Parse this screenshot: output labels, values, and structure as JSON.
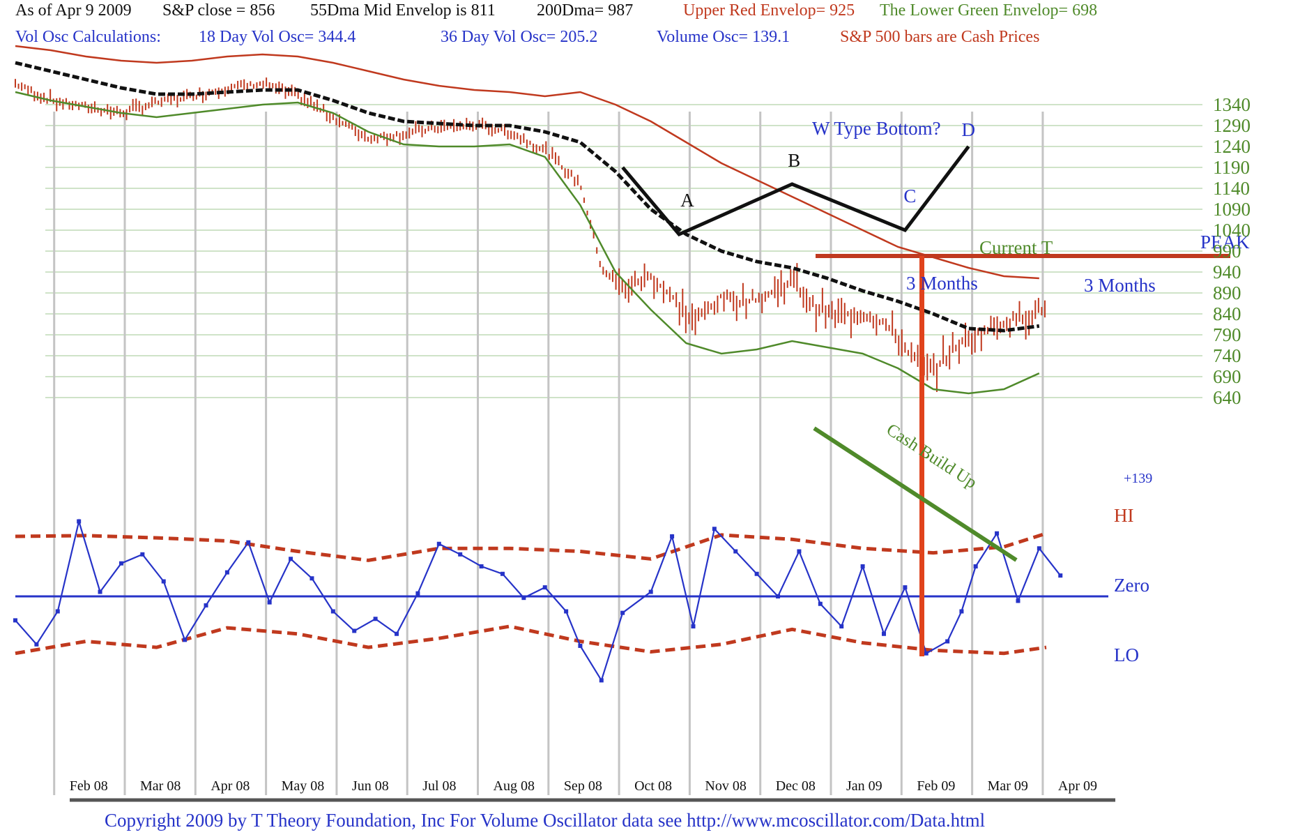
{
  "header": {
    "line1": [
      {
        "text": "As of Apr 9  2009",
        "color": "black"
      },
      {
        "text": "S&P close = 856",
        "color": "black"
      },
      {
        "text": "55Dma Mid Envelop is  811",
        "color": "black"
      },
      {
        "text": "200Dma=  987",
        "color": "black"
      },
      {
        "text": "Upper Red Envelop= 925",
        "color": "red"
      },
      {
        "text": "The Lower Green Envelop=  698",
        "color": "green"
      }
    ],
    "line2": [
      {
        "text": "Vol Osc Calculations:",
        "color": "blue"
      },
      {
        "text": "18 Day Vol Osc=  344.4",
        "color": "blue"
      },
      {
        "text": "36 Day Vol Osc=  205.2",
        "color": "blue"
      },
      {
        "text": "Volume Osc=  139.1",
        "color": "blue"
      },
      {
        "text": "S&P 500 bars are Cash Prices",
        "color": "red"
      }
    ]
  },
  "footer": {
    "copyright": "Copyright 2009 by T Theory Foundation, Inc  For Volume Oscillator data see http://www.mcoscillator.com/Data.html"
  },
  "colors": {
    "price_bars": "#c0391e",
    "upper_envelope": "#c0391e",
    "lower_envelope": "#4f8a2a",
    "mid_envelope": "#111111",
    "oscillator": "#2633c8",
    "hi_lo_bands": "#c0391e",
    "grid": "#cfe3c8",
    "vertical_grid": "#c4c4c4"
  },
  "chart_data": {
    "type": "line",
    "price_axis": {
      "ticks": [
        1340,
        1290,
        1240,
        1190,
        1140,
        1090,
        1040,
        990,
        940,
        890,
        840,
        790,
        740,
        690,
        640
      ],
      "ylim": [
        620,
        1360
      ]
    },
    "months": [
      "Feb 08",
      "Mar 08",
      "Apr 08",
      "May 08",
      "Jun 08",
      "Jul 08",
      "Aug 08",
      "Sep 08",
      "Oct 08",
      "Nov 08",
      "Dec 08",
      "Jan 09",
      "Feb 09",
      "Mar 09",
      "Apr 09"
    ],
    "x_range": [
      "Jan 08",
      "Apr 09"
    ],
    "series": [
      {
        "name": "S&P 500 bars are Cash Prices",
        "kind": "price-line",
        "values": [
          [
            0,
            1390
          ],
          [
            0.5,
            1350
          ],
          [
            1,
            1335
          ],
          [
            1.5,
            1320
          ],
          [
            2,
            1345
          ],
          [
            2.5,
            1360
          ],
          [
            3,
            1380
          ],
          [
            3.5,
            1390
          ],
          [
            4,
            1360
          ],
          [
            4.5,
            1310
          ],
          [
            5,
            1260
          ],
          [
            5.5,
            1270
          ],
          [
            6,
            1285
          ],
          [
            6.5,
            1290
          ],
          [
            7,
            1275
          ],
          [
            7.5,
            1230
          ],
          [
            8,
            1150
          ],
          [
            8.3,
            950
          ],
          [
            8.6,
            900
          ],
          [
            9,
            930
          ],
          [
            9.3,
            880
          ],
          [
            9.6,
            820
          ],
          [
            10,
            880
          ],
          [
            10.3,
            870
          ],
          [
            10.6,
            880
          ],
          [
            11,
            920
          ],
          [
            11.3,
            860
          ],
          [
            11.6,
            835
          ],
          [
            12,
            840
          ],
          [
            12.3,
            820
          ],
          [
            12.6,
            760
          ],
          [
            12.9,
            700
          ],
          [
            13.1,
            720
          ],
          [
            13.3,
            760
          ],
          [
            13.6,
            790
          ],
          [
            14,
            820
          ],
          [
            14.3,
            835
          ],
          [
            14.6,
            856
          ]
        ]
      },
      {
        "name": "Upper Red Envelop",
        "kind": "line",
        "values": [
          [
            0,
            1480
          ],
          [
            0.5,
            1470
          ],
          [
            1,
            1455
          ],
          [
            1.5,
            1445
          ],
          [
            2,
            1440
          ],
          [
            2.5,
            1445
          ],
          [
            3,
            1455
          ],
          [
            3.5,
            1460
          ],
          [
            4,
            1455
          ],
          [
            4.5,
            1440
          ],
          [
            5,
            1420
          ],
          [
            5.5,
            1400
          ],
          [
            6,
            1385
          ],
          [
            6.5,
            1375
          ],
          [
            7,
            1370
          ],
          [
            7.5,
            1360
          ],
          [
            8,
            1370
          ],
          [
            8.5,
            1340
          ],
          [
            9,
            1300
          ],
          [
            9.5,
            1250
          ],
          [
            10,
            1200
          ],
          [
            10.5,
            1160
          ],
          [
            11,
            1120
          ],
          [
            11.5,
            1080
          ],
          [
            12,
            1040
          ],
          [
            12.5,
            1000
          ],
          [
            13,
            975
          ],
          [
            13.5,
            950
          ],
          [
            14,
            930
          ],
          [
            14.5,
            925
          ]
        ]
      },
      {
        "name": "55Dma Mid Envelop",
        "kind": "line",
        "values": [
          [
            0,
            1440
          ],
          [
            0.5,
            1420
          ],
          [
            1,
            1400
          ],
          [
            1.5,
            1380
          ],
          [
            2,
            1365
          ],
          [
            2.5,
            1365
          ],
          [
            3,
            1370
          ],
          [
            3.5,
            1375
          ],
          [
            4,
            1375
          ],
          [
            4.5,
            1350
          ],
          [
            5,
            1320
          ],
          [
            5.5,
            1300
          ],
          [
            6,
            1295
          ],
          [
            6.5,
            1290
          ],
          [
            7,
            1290
          ],
          [
            7.5,
            1275
          ],
          [
            8,
            1250
          ],
          [
            8.5,
            1180
          ],
          [
            9,
            1090
          ],
          [
            9.5,
            1030
          ],
          [
            10,
            990
          ],
          [
            10.5,
            965
          ],
          [
            11,
            950
          ],
          [
            11.5,
            925
          ],
          [
            12,
            895
          ],
          [
            12.5,
            870
          ],
          [
            13,
            840
          ],
          [
            13.5,
            805
          ],
          [
            14,
            800
          ],
          [
            14.5,
            811
          ]
        ]
      },
      {
        "name": "The Lower Green Envelop",
        "kind": "line",
        "values": [
          [
            0,
            1370
          ],
          [
            0.5,
            1350
          ],
          [
            1,
            1335
          ],
          [
            1.5,
            1320
          ],
          [
            2,
            1310
          ],
          [
            2.5,
            1320
          ],
          [
            3,
            1330
          ],
          [
            3.5,
            1340
          ],
          [
            4,
            1345
          ],
          [
            4.5,
            1320
          ],
          [
            5,
            1275
          ],
          [
            5.5,
            1245
          ],
          [
            6,
            1240
          ],
          [
            6.5,
            1240
          ],
          [
            7,
            1245
          ],
          [
            7.5,
            1215
          ],
          [
            8,
            1100
          ],
          [
            8.5,
            940
          ],
          [
            9,
            850
          ],
          [
            9.5,
            770
          ],
          [
            10,
            745
          ],
          [
            10.5,
            755
          ],
          [
            11,
            775
          ],
          [
            11.5,
            760
          ],
          [
            12,
            745
          ],
          [
            12.5,
            710
          ],
          [
            13,
            660
          ],
          [
            13.5,
            650
          ],
          [
            14,
            660
          ],
          [
            14.5,
            698
          ]
        ]
      },
      {
        "name": "Volume Osc",
        "kind": "line",
        "values": [
          [
            0,
            -160
          ],
          [
            0.3,
            -320
          ],
          [
            0.6,
            -100
          ],
          [
            0.9,
            500
          ],
          [
            1.2,
            30
          ],
          [
            1.5,
            220
          ],
          [
            1.8,
            280
          ],
          [
            2.1,
            100
          ],
          [
            2.4,
            -290
          ],
          [
            2.7,
            -60
          ],
          [
            3,
            160
          ],
          [
            3.3,
            360
          ],
          [
            3.6,
            -40
          ],
          [
            3.9,
            250
          ],
          [
            4.2,
            120
          ],
          [
            4.5,
            -100
          ],
          [
            4.8,
            -230
          ],
          [
            5.1,
            -150
          ],
          [
            5.4,
            -250
          ],
          [
            5.7,
            20
          ],
          [
            6,
            350
          ],
          [
            6.3,
            280
          ],
          [
            6.6,
            200
          ],
          [
            6.9,
            150
          ],
          [
            7.2,
            -10
          ],
          [
            7.5,
            60
          ],
          [
            7.8,
            -100
          ],
          [
            8,
            -330
          ],
          [
            8.3,
            -560
          ],
          [
            8.6,
            -110
          ],
          [
            9,
            30
          ],
          [
            9.3,
            400
          ],
          [
            9.6,
            -200
          ],
          [
            9.9,
            450
          ],
          [
            10.2,
            300
          ],
          [
            10.5,
            150
          ],
          [
            10.8,
            0
          ],
          [
            11.1,
            300
          ],
          [
            11.4,
            -50
          ],
          [
            11.7,
            -200
          ],
          [
            12,
            200
          ],
          [
            12.3,
            -250
          ],
          [
            12.6,
            60
          ],
          [
            12.9,
            -380
          ],
          [
            13.2,
            -300
          ],
          [
            13.4,
            -100
          ],
          [
            13.6,
            200
          ],
          [
            13.9,
            420
          ],
          [
            14.2,
            -30
          ],
          [
            14.5,
            320
          ],
          [
            14.8,
            139
          ]
        ]
      },
      {
        "name": "HI",
        "kind": "band",
        "values": [
          [
            0,
            400
          ],
          [
            1,
            405
          ],
          [
            2,
            390
          ],
          [
            3,
            370
          ],
          [
            4,
            300
          ],
          [
            5,
            240
          ],
          [
            6,
            320
          ],
          [
            7,
            320
          ],
          [
            8,
            300
          ],
          [
            9,
            250
          ],
          [
            10,
            410
          ],
          [
            11,
            380
          ],
          [
            12,
            320
          ],
          [
            13,
            290
          ],
          [
            14,
            330
          ],
          [
            14.6,
            420
          ]
        ]
      },
      {
        "name": "LO",
        "kind": "band",
        "values": [
          [
            0,
            -380
          ],
          [
            1,
            -300
          ],
          [
            2,
            -340
          ],
          [
            3,
            -210
          ],
          [
            4,
            -250
          ],
          [
            5,
            -340
          ],
          [
            6,
            -280
          ],
          [
            7,
            -200
          ],
          [
            8,
            -300
          ],
          [
            9,
            -370
          ],
          [
            10,
            -320
          ],
          [
            11,
            -220
          ],
          [
            12,
            -310
          ],
          [
            13,
            -360
          ],
          [
            14,
            -380
          ],
          [
            14.6,
            -340
          ]
        ]
      }
    ],
    "zero_line": 0,
    "osc_label": "+139",
    "band_labels": {
      "hi": "HI",
      "zero": "Zero",
      "lo": "LO",
      "peak": "PEAK"
    },
    "annotations": {
      "w_title": "W Type Bottom?",
      "points": [
        {
          "label": "A",
          "x": 9.4,
          "y": 1030
        },
        {
          "label": "B",
          "x": 11.0,
          "y": 1150
        },
        {
          "label": "C",
          "x": 12.6,
          "y": 1040
        },
        {
          "label": "D",
          "x": 13.5,
          "y": 1240
        }
      ],
      "w_path": [
        [
          8.6,
          1190
        ],
        [
          9.4,
          1030
        ],
        [
          11.0,
          1150
        ],
        [
          12.6,
          1040
        ],
        [
          13.5,
          1240
        ]
      ],
      "current_t": "Current T",
      "months_left": "3 Months",
      "months_right": "3 Months",
      "cash_build_up": "Cash Build Up"
    }
  }
}
